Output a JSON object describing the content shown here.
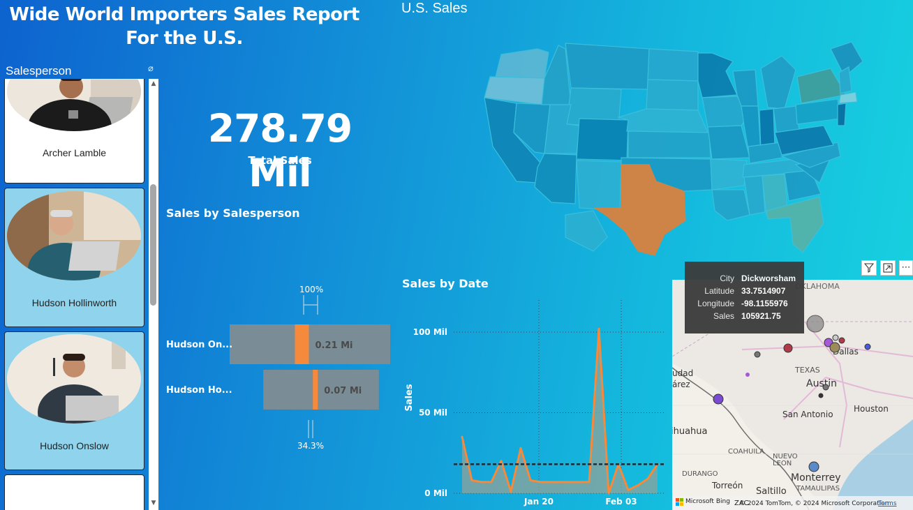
{
  "report": {
    "title": "Wide World Importers Sales Report For the U.S."
  },
  "slicer": {
    "title": "Salesperson",
    "eraser_icon": "eraser-icon",
    "items": [
      {
        "name": "Archer Lamble",
        "selected": false
      },
      {
        "name": "Hudson Hollinworth",
        "selected": true
      },
      {
        "name": "Hudson Onslow",
        "selected": true
      },
      {
        "name": "",
        "selected": false
      }
    ]
  },
  "kpi": {
    "value": "278.79 Mil",
    "label": "Total Sales"
  },
  "bar_chart_title": "Sales by Salesperson",
  "line_chart_title": "Sales by Date",
  "map_title": "U.S. Sales",
  "tooltip": {
    "rows": [
      {
        "key": "City",
        "value": "Dickworsham"
      },
      {
        "key": "Latitude",
        "value": "33.7514907"
      },
      {
        "key": "Longitude",
        "value": "-98.1155976"
      },
      {
        "key": "Sales",
        "value": "105921.75"
      }
    ]
  },
  "bubble_map": {
    "labels": {
      "oklahoma": "OKLAHOMA",
      "dallas": "Dallas",
      "texas": "TEXAS",
      "austin": "Austin",
      "san_antonio": "San Antonio",
      "houston": "Houston",
      "chihuahua": "ihuahua",
      "coahuila": "COAHUILA",
      "nuevo_leon": "NUEVO",
      "leon": "LEON",
      "durango": "DURANGO",
      "torreon": "Torreón",
      "saltillo": "Saltillo",
      "monterrey": "Monterrey",
      "tamaulipas": "TAMAULIPAS",
      "ciudad": "udad",
      "juarez": "árez"
    },
    "attribution": "© 2024 TomTom, © 2024 Microsoft Corporation",
    "terms": "Terms",
    "bing": "Microsoft Bing",
    "zac": "ZAC"
  },
  "colors": {
    "accent": "#f58a3c",
    "highlight_state": "#d9823f",
    "bar_bg": "#7a8d96"
  },
  "chart_data": [
    {
      "type": "bar",
      "title": "Sales by Salesperson",
      "categories": [
        "Hudson On...",
        "Hudson Ho..."
      ],
      "series": [
        {
          "values": [
            0.21,
            0.07
          ]
        }
      ],
      "value_labels": [
        "0.21 Mi",
        "0.07 Mi"
      ],
      "reference_top": "100%",
      "reference_bottom": "34.3%"
    },
    {
      "type": "line",
      "title": "Sales by Date",
      "ylabel": "Sales",
      "x_ticks": [
        "Jan 20",
        "Feb 03"
      ],
      "y_ticks": [
        "0 Mil",
        "50 Mil",
        "100 Mil"
      ],
      "ylim": [
        0,
        100
      ],
      "reference_line": 18,
      "values": [
        35,
        8,
        7,
        7,
        20,
        1,
        28,
        8,
        7,
        7,
        7,
        7,
        7,
        7,
        102,
        0,
        18,
        2,
        5,
        9,
        18
      ]
    }
  ]
}
